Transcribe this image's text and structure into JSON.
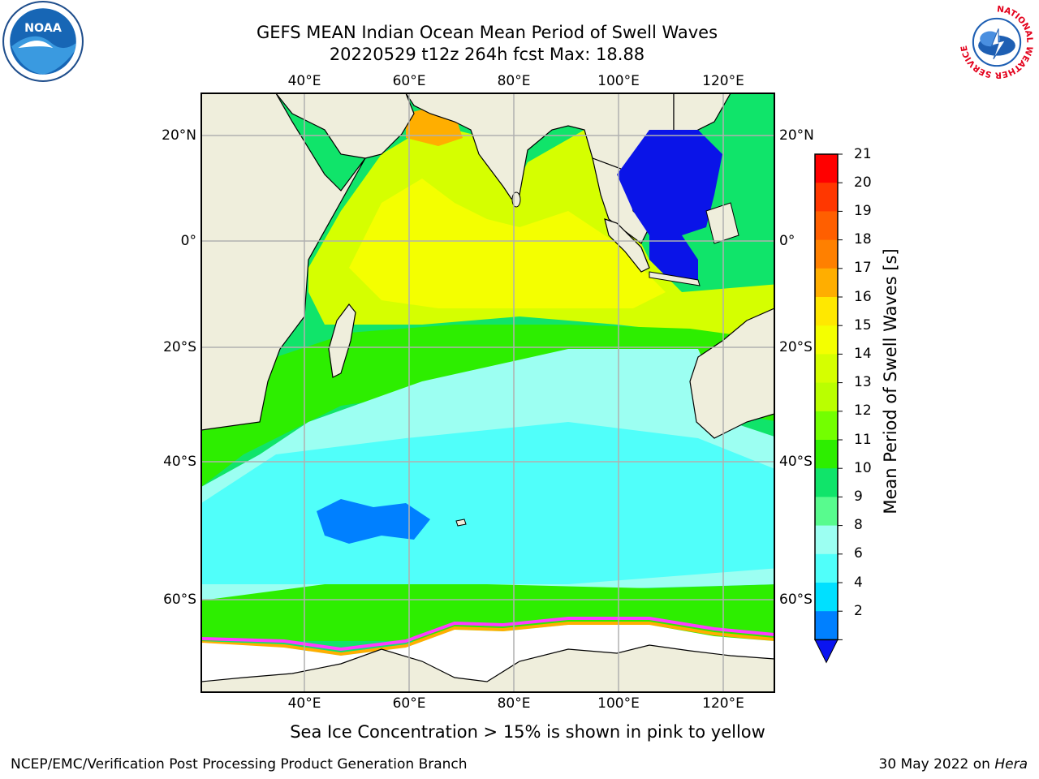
{
  "title": {
    "line1": "GEFS MEAN Indian Ocean Mean Period of Swell Waves",
    "line2": "20220529 t12z 264h fcst   Max: 18.88"
  },
  "logos": {
    "noaa": {
      "icon": "noaa-logo",
      "text": "NOAA"
    },
    "nws": {
      "icon": "nws-logo",
      "text": "NATIONAL WEATHER SERVICE"
    }
  },
  "map": {
    "lon_ticks": [
      {
        "label": "40°E",
        "value": 40
      },
      {
        "label": "60°E",
        "value": 60
      },
      {
        "label": "80°E",
        "value": 80
      },
      {
        "label": "100°E",
        "value": 100
      },
      {
        "label": "120°E",
        "value": 120
      }
    ],
    "lat_ticks": [
      {
        "label": "20°N",
        "value": 20
      },
      {
        "label": "0°",
        "value": 0
      },
      {
        "label": "20°S",
        "value": -20
      },
      {
        "label": "40°S",
        "value": -40
      },
      {
        "label": "60°S",
        "value": -60
      }
    ],
    "colors": {
      "land": "#efeedc",
      "ocean_blue": "#0a14e8",
      "grid": "#b0b0b0"
    }
  },
  "colorbar": {
    "label": "Mean Period of Swell Waves [s]",
    "ticks": [
      "21",
      "20",
      "19",
      "18",
      "17",
      "16",
      "15",
      "14",
      "13",
      "12",
      "11",
      "10",
      "9",
      "8",
      "6",
      "4",
      "2"
    ],
    "colors": [
      "#ff0000",
      "#ff3700",
      "#ff5f00",
      "#ff8000",
      "#ffae00",
      "#ffe800",
      "#f4ff00",
      "#d5ff00",
      "#baff00",
      "#73ff00",
      "#2dee00",
      "#10e46a",
      "#58fb8e",
      "#9cfff2",
      "#50fffa",
      "#00e0ff",
      "#0080ff"
    ],
    "under_color": "#0a14f0"
  },
  "note": "Sea Ice Concentration > 15% is shown in pink to yellow",
  "footer": {
    "left": "NCEP/EMC/Verification Post Processing Product Generation Branch",
    "right_prefix": "30 May 2022 on ",
    "right_host": "Hera"
  }
}
